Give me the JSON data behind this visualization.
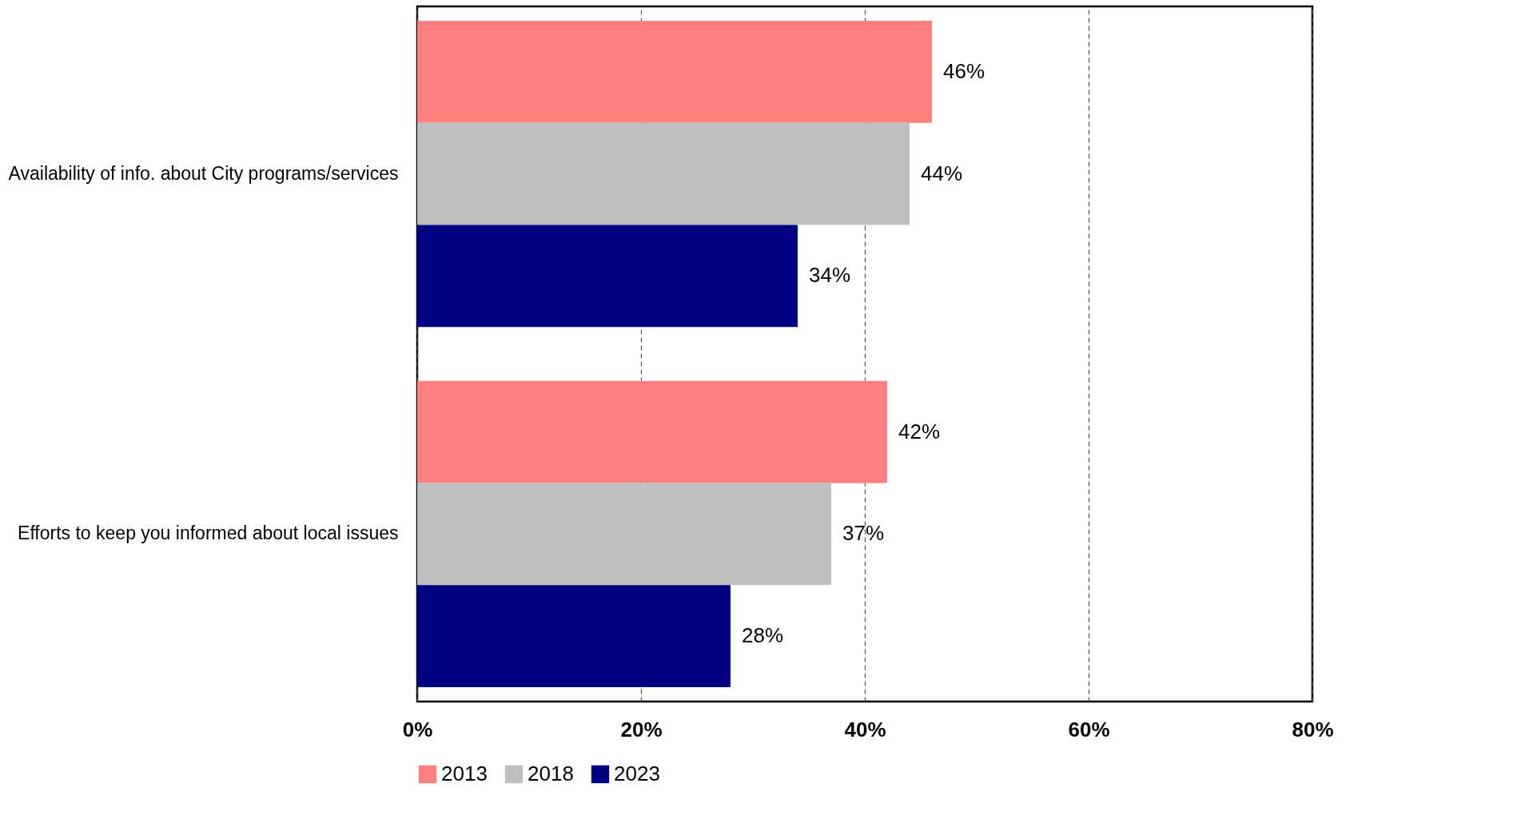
{
  "chart_data": {
    "type": "bar",
    "orientation": "horizontal",
    "categories": [
      "Availability of info. about City programs/services",
      "Efforts to keep you informed about local issues"
    ],
    "series": [
      {
        "name": "2013",
        "color": "#ff7f7f",
        "values": [
          46,
          42
        ],
        "value_labels": [
          "46%",
          "42%"
        ]
      },
      {
        "name": "2018",
        "color": "#bfbfbf",
        "values": [
          44,
          37
        ],
        "value_labels": [
          "44%",
          "37%"
        ]
      },
      {
        "name": "2023",
        "color": "#000080",
        "values": [
          34,
          28
        ],
        "value_labels": [
          "34%",
          "28%"
        ]
      }
    ],
    "xlim": [
      0,
      80
    ],
    "xticks": [
      {
        "value": 0,
        "label": "0%"
      },
      {
        "value": 20,
        "label": "20%"
      },
      {
        "value": 40,
        "label": "40%"
      },
      {
        "value": 60,
        "label": "60%"
      },
      {
        "value": 80,
        "label": "80%"
      }
    ],
    "grid": "x",
    "legend": "bottom"
  }
}
